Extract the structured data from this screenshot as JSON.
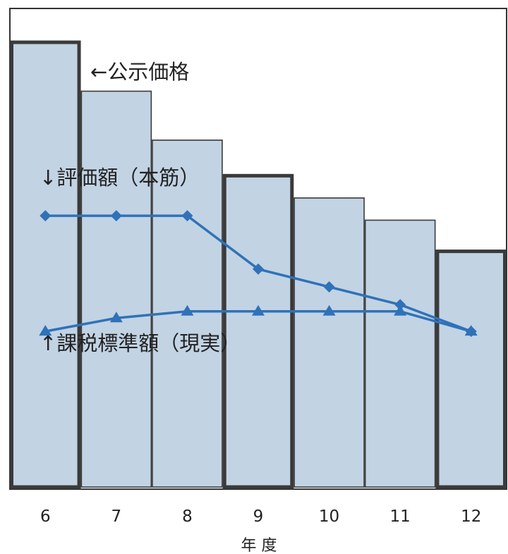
{
  "chart_data": {
    "type": "bar",
    "categories": [
      "6",
      "7",
      "8",
      "9",
      "10",
      "11",
      "12"
    ],
    "xlabel": "年 度",
    "bars": {
      "name": "公示価格",
      "values": [
        100,
        89,
        78,
        70,
        65,
        60,
        53
      ],
      "emphasized_categories": [
        "6",
        "9",
        "12"
      ]
    },
    "series": [
      {
        "name": "評価額（本筋）",
        "type": "line",
        "marker": "diamond",
        "values": [
          61,
          61,
          61,
          49,
          45,
          41,
          35
        ]
      },
      {
        "name": "課税標準額（現実）",
        "type": "line",
        "marker": "triangle",
        "values": [
          35,
          38,
          39.5,
          39.5,
          39.5,
          39.5,
          35
        ]
      }
    ],
    "ylim": [
      0,
      100
    ],
    "labels": {
      "bars": "←公示価格",
      "eval": "↓評価額（本筋）",
      "tax": "↑課税標準額（現実）"
    },
    "colors": {
      "bar_fill": "#c2d3e4",
      "bar_edge": "#3a3a3a",
      "line": "#2f72b8"
    }
  }
}
